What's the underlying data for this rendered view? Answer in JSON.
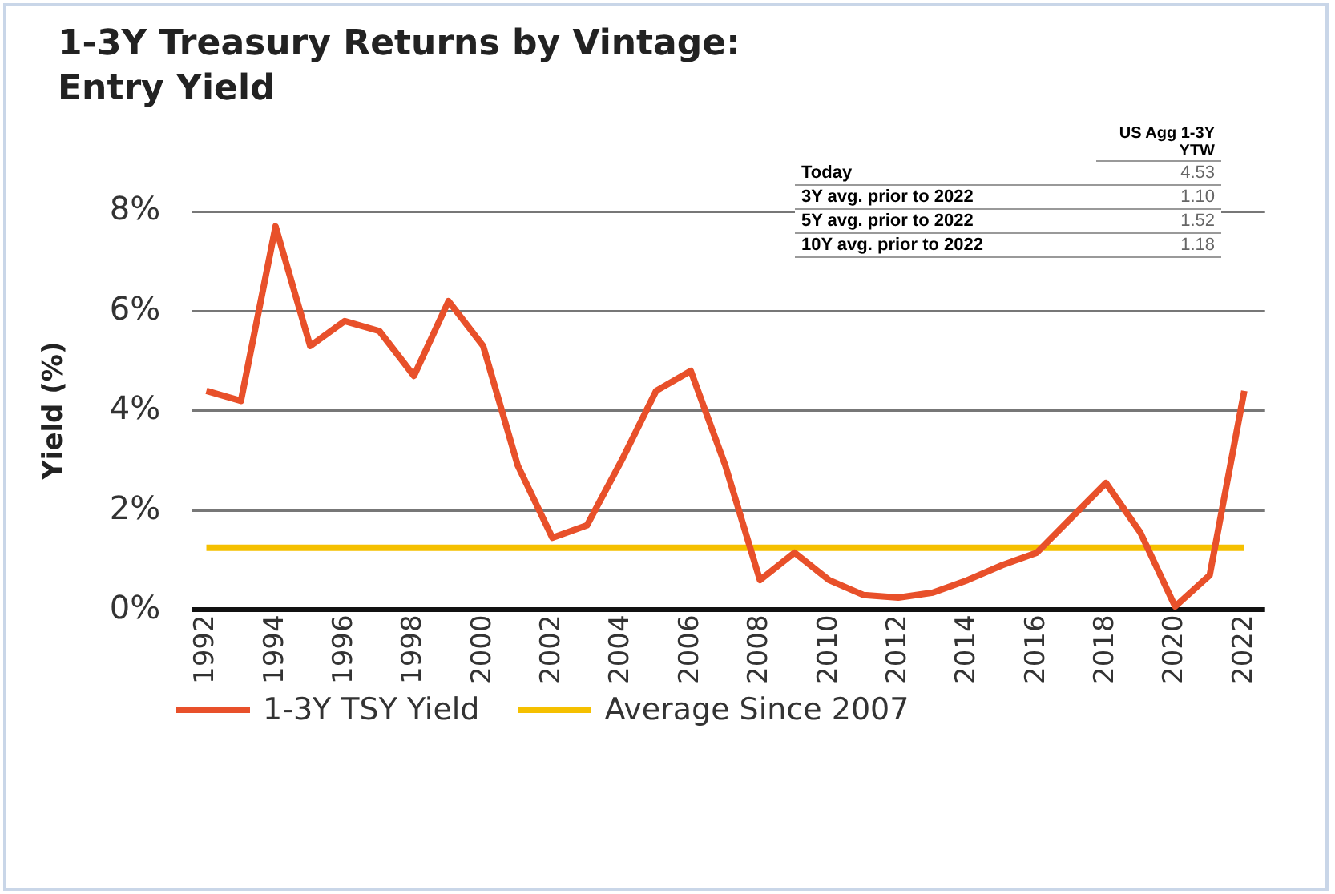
{
  "chart_data": {
    "type": "line",
    "title": "1-3Y Treasury Returns by Vintage: Entry Yield",
    "ylabel": "Yield (%)",
    "x": [
      1992,
      1993,
      1994,
      1995,
      1996,
      1997,
      1998,
      1999,
      2000,
      2001,
      2002,
      2003,
      2004,
      2005,
      2006,
      2007,
      2008,
      2009,
      2010,
      2011,
      2012,
      2013,
      2014,
      2015,
      2016,
      2017,
      2018,
      2019,
      2020,
      2021,
      2022
    ],
    "series": [
      {
        "name": "1-3Y TSY Yield",
        "color": "#e8502a",
        "values": [
          4.4,
          4.2,
          7.7,
          5.3,
          5.8,
          5.6,
          4.7,
          6.2,
          5.3,
          2.9,
          1.45,
          1.7,
          3.0,
          4.4,
          4.8,
          2.9,
          0.6,
          1.15,
          0.6,
          0.3,
          0.25,
          0.35,
          0.6,
          0.9,
          1.15,
          1.85,
          2.55,
          1.55,
          0.07,
          0.7,
          4.4
        ]
      },
      {
        "name": "Average Since 2007",
        "color": "#f5c000",
        "x": [
          1992,
          2022
        ],
        "values": [
          1.25,
          1.25
        ]
      }
    ],
    "xlim": [
      1991.6,
      2022.6
    ],
    "xticks": [
      1992,
      1994,
      1996,
      1998,
      2000,
      2002,
      2004,
      2006,
      2008,
      2010,
      2012,
      2014,
      2016,
      2018,
      2020,
      2022
    ],
    "ylim": [
      0,
      8
    ],
    "yticks": [
      {
        "value": 0,
        "label": "0%"
      },
      {
        "value": 2,
        "label": "2%"
      },
      {
        "value": 4,
        "label": "4%"
      },
      {
        "value": 6,
        "label": "6%"
      },
      {
        "value": 8,
        "label": "8%"
      }
    ],
    "grid": "y",
    "legend": "bottom",
    "marker": "none",
    "line_style": "solid",
    "annotations": [
      "US Agg 1-3Y YTW",
      "Today",
      "4.53",
      "3Y avg. prior to 2022",
      "1.10",
      "5Y avg. prior to 2022",
      "1.52",
      "10Y avg. prior to 2022",
      "1.18"
    ]
  }
}
